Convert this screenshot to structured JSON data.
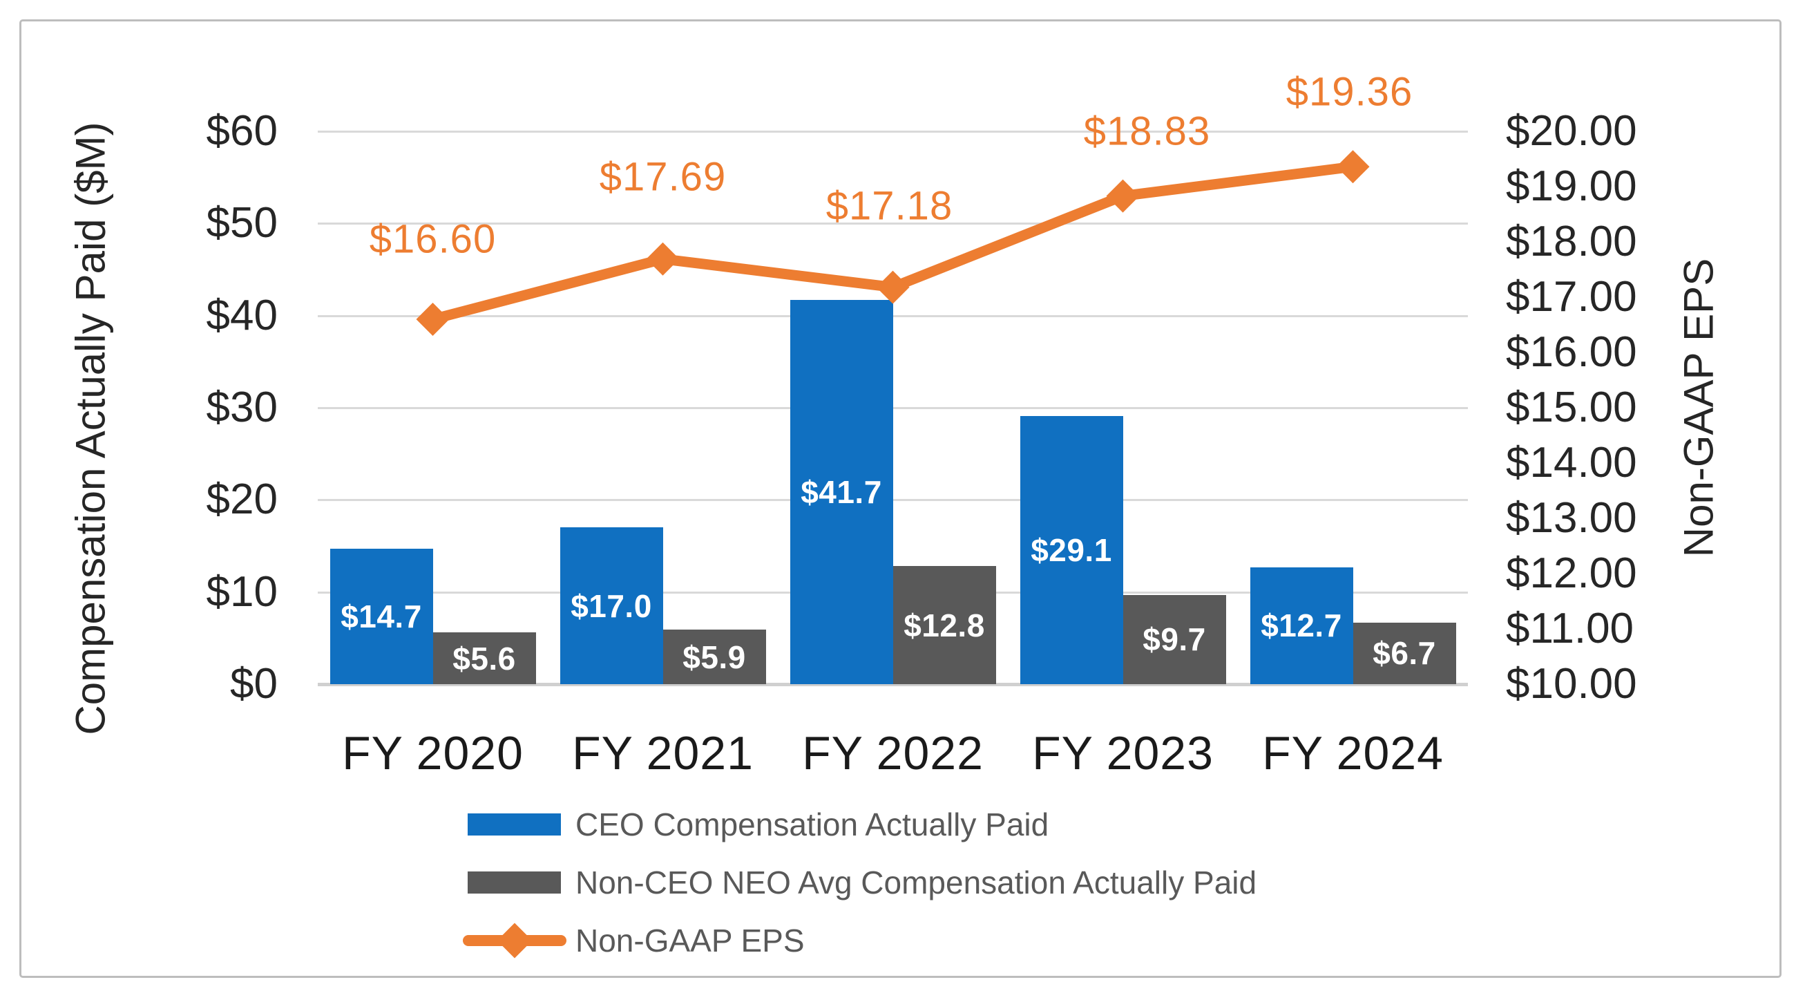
{
  "chart_data": {
    "type": "combo-bar-line",
    "categories": [
      "FY 2020",
      "FY 2021",
      "FY 2022",
      "FY 2023",
      "FY 2024"
    ],
    "series": [
      {
        "name": "CEO Compensation Actually Paid",
        "type": "bar",
        "axis": "left",
        "color": "#1070C1",
        "values": [
          14.7,
          17.0,
          41.7,
          29.1,
          12.7
        ],
        "data_labels": [
          "$14.7",
          "$17.0",
          "$41.7",
          "$29.1",
          "$12.7"
        ]
      },
      {
        "name": "Non-CEO NEO Avg Compensation Actually Paid",
        "type": "bar",
        "axis": "left",
        "color": "#595959",
        "values": [
          5.6,
          5.9,
          12.8,
          9.7,
          6.7
        ],
        "data_labels": [
          "$5.6",
          "$5.9",
          "$12.8",
          "$9.7",
          "$6.7"
        ]
      },
      {
        "name": "Non-GAAP EPS",
        "type": "line",
        "axis": "right",
        "color": "#ED7D31",
        "marker": "diamond",
        "values": [
          16.6,
          17.69,
          17.18,
          18.83,
          19.36
        ],
        "data_labels": [
          "$16.60",
          "$17.69",
          "$17.18",
          "$18.83",
          "$19.36"
        ]
      }
    ],
    "left_axis": {
      "title": "Compensation Actually Paid ($M)",
      "min": 0,
      "max": 60,
      "step": 10,
      "tick_labels_top_to_bottom": [
        "$60",
        "$50",
        "$40",
        "$30",
        "$20",
        "$10",
        "$0"
      ]
    },
    "right_axis": {
      "title": "Non-GAAP EPS",
      "min": 10,
      "max": 20,
      "step": 1,
      "tick_labels_top_to_bottom": [
        "$20.00",
        "$19.00",
        "$18.00",
        "$17.00",
        "$16.00",
        "$15.00",
        "$14.00",
        "$13.00",
        "$12.00",
        "$11.00",
        "$10.00"
      ]
    },
    "grid": true,
    "legend_position": "bottom-left",
    "legend_entries": [
      "CEO Compensation Actually Paid",
      "Non-CEO NEO Avg Compensation Actually Paid",
      "Non-GAAP EPS"
    ]
  },
  "colors": {
    "bar_blue": "#1070C1",
    "bar_gray": "#595959",
    "line_orange": "#ED7D31",
    "gridline": "#D9D9D9",
    "axis_line": "#D0D0D0",
    "tick_text": "#262626",
    "x_label_text": "#1A1A1A",
    "axis_title_text": "#262626",
    "legend_text": "#595959",
    "bar_label_text": "#FFFFFF",
    "border": "#BDBDBD",
    "background": "#FFFFFF"
  }
}
